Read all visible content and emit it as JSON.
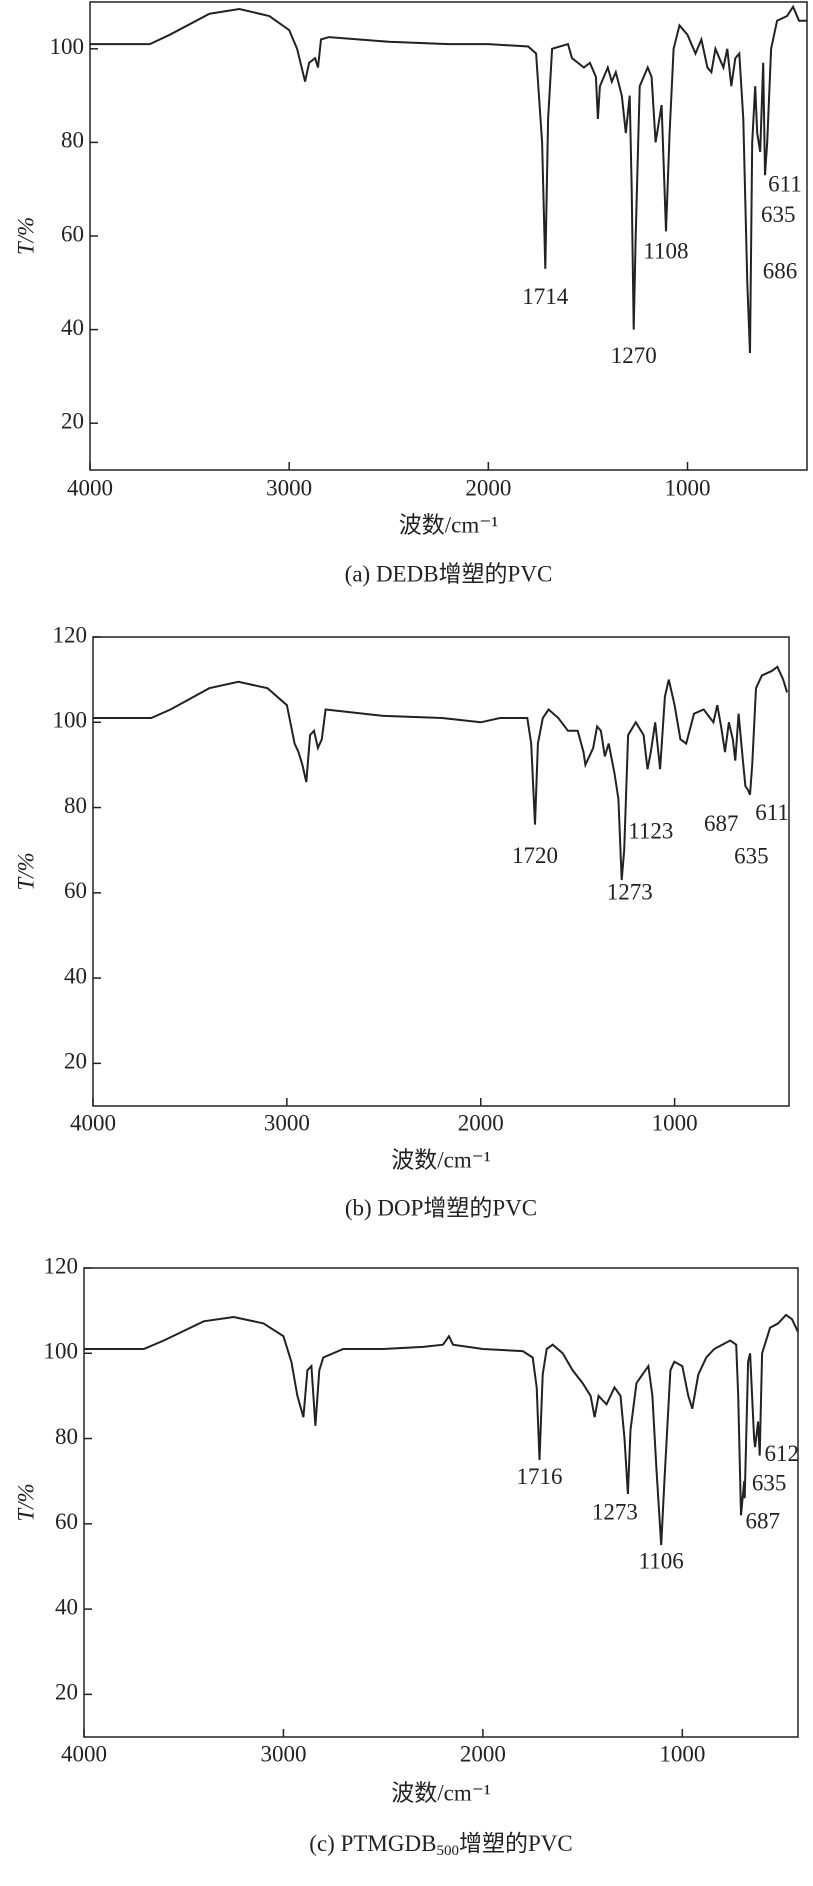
{
  "chart_data": [
    {
      "type": "line",
      "caption": "(a)  DEDB增塑的PVC",
      "xlabel": "波数/cm⁻¹",
      "ylabel": "T/%",
      "color": "#222222",
      "xlim": [
        4000,
        400
      ],
      "ylim": [
        10,
        110
      ],
      "xticks": [
        4000,
        3000,
        2000,
        1000
      ],
      "yticks": [
        20,
        40,
        60,
        80,
        100
      ],
      "x": [
        4000,
        3700,
        3600,
        3400,
        3250,
        3100,
        3000,
        2960,
        2920,
        2900,
        2870,
        2855,
        2840,
        2800,
        2500,
        2200,
        2000,
        1800,
        1760,
        1730,
        1714,
        1700,
        1680,
        1600,
        1580,
        1520,
        1490,
        1460,
        1450,
        1440,
        1400,
        1380,
        1360,
        1330,
        1310,
        1290,
        1280,
        1270,
        1260,
        1240,
        1200,
        1180,
        1160,
        1130,
        1108,
        1090,
        1070,
        1040,
        1000,
        960,
        930,
        900,
        880,
        860,
        820,
        800,
        780,
        760,
        740,
        720,
        700,
        686,
        675,
        660,
        650,
        635,
        620,
        611,
        600,
        580,
        550,
        500,
        470,
        440,
        400
      ],
      "values": [
        101,
        101,
        103,
        107.5,
        108.5,
        107,
        104,
        100,
        93,
        97,
        98,
        96,
        102,
        102.5,
        101.5,
        101,
        101,
        100.5,
        99,
        80,
        53,
        85,
        100,
        101,
        98,
        96,
        97,
        94,
        85,
        92,
        96,
        93,
        95,
        90,
        82,
        90,
        70,
        40,
        60,
        92,
        96,
        94,
        80,
        88,
        61,
        82,
        100,
        105,
        103,
        99,
        102,
        96,
        95,
        100,
        96,
        100,
        92,
        98,
        99,
        85,
        50,
        35,
        80,
        92,
        82,
        78,
        97,
        73,
        80,
        100,
        106,
        107,
        109,
        106,
        106
      ],
      "annotations": [
        1714,
        1270,
        1108,
        686,
        635,
        611
      ]
    },
    {
      "type": "line",
      "caption": "(b) DOP增塑的PVC",
      "xlabel": "波数/cm⁻¹",
      "ylabel": "T/%",
      "color": "#222222",
      "xlim": [
        4000,
        410
      ],
      "ylim": [
        10,
        120
      ],
      "xticks": [
        4000,
        3000,
        2000,
        1000
      ],
      "yticks": [
        20,
        40,
        60,
        80,
        100,
        120
      ],
      "x": [
        4000,
        3700,
        3600,
        3400,
        3250,
        3100,
        3000,
        2960,
        2940,
        2920,
        2900,
        2880,
        2860,
        2840,
        2820,
        2800,
        2500,
        2200,
        2000,
        1900,
        1760,
        1740,
        1720,
        1705,
        1680,
        1650,
        1600,
        1550,
        1500,
        1470,
        1460,
        1440,
        1420,
        1400,
        1380,
        1360,
        1340,
        1310,
        1290,
        1273,
        1260,
        1240,
        1200,
        1160,
        1140,
        1123,
        1100,
        1075,
        1050,
        1030,
        1000,
        970,
        940,
        900,
        850,
        800,
        780,
        760,
        740,
        720,
        700,
        687,
        670,
        650,
        635,
        620,
        611,
        600,
        580,
        550,
        500,
        470,
        440,
        420
      ],
      "values": [
        101,
        101,
        103,
        108,
        109.5,
        108,
        104,
        95,
        93,
        90,
        86,
        97,
        98,
        94,
        96,
        103,
        101.5,
        101,
        100,
        101,
        101,
        95,
        76,
        95,
        101,
        103,
        101,
        98,
        98,
        93,
        90,
        92,
        94,
        99,
        98,
        92,
        95,
        88,
        82,
        63,
        70,
        97,
        100,
        97,
        89,
        93,
        100,
        89,
        106,
        110,
        104,
        96,
        95,
        102,
        103,
        100,
        104,
        99,
        93,
        100,
        96,
        91,
        102,
        92,
        85,
        84,
        83,
        90,
        108,
        111,
        112,
        113,
        110,
        107
      ],
      "annotations": [
        1720,
        1273,
        1123,
        687,
        635,
        611
      ]
    },
    {
      "type": "line",
      "caption": [
        "(c) PTMGDB",
        "500",
        "增塑的PVC"
      ],
      "xlabel": "波数/cm⁻¹",
      "ylabel": "T/%",
      "color": "#222222",
      "xlim": [
        4000,
        420
      ],
      "ylim": [
        10,
        120
      ],
      "xticks": [
        4000,
        3000,
        2000,
        1000
      ],
      "yticks": [
        20,
        40,
        60,
        80,
        100,
        120
      ],
      "x": [
        4000,
        3700,
        3600,
        3400,
        3250,
        3100,
        3000,
        2960,
        2930,
        2900,
        2880,
        2860,
        2840,
        2820,
        2800,
        2700,
        2500,
        2300,
        2200,
        2170,
        2150,
        2000,
        1800,
        1750,
        1730,
        1716,
        1700,
        1680,
        1650,
        1600,
        1550,
        1500,
        1460,
        1440,
        1420,
        1380,
        1340,
        1310,
        1290,
        1273,
        1260,
        1230,
        1200,
        1170,
        1150,
        1130,
        1106,
        1090,
        1060,
        1040,
        1000,
        970,
        950,
        920,
        880,
        840,
        800,
        760,
        730,
        720,
        706,
        690,
        687,
        670,
        660,
        640,
        635,
        620,
        612,
        600,
        560,
        520,
        480,
        450,
        430,
        420
      ],
      "values": [
        101,
        101,
        103,
        107.5,
        108.5,
        107,
        104,
        98,
        90,
        85,
        96,
        97,
        83,
        96,
        99,
        101,
        101,
        101.5,
        102,
        104,
        102,
        101,
        100.5,
        99,
        92,
        75,
        95,
        101,
        102,
        100,
        96,
        93,
        90,
        85,
        90,
        88,
        92,
        90,
        80,
        67,
        82,
        93,
        95,
        97,
        90,
        73,
        55,
        70,
        96,
        98,
        97,
        90,
        87,
        95,
        99,
        101,
        102,
        103,
        102,
        90,
        62,
        70,
        66,
        98,
        100,
        80,
        78,
        84,
        76,
        100,
        106,
        107,
        109,
        108,
        106,
        105
      ],
      "annotations": [
        1716,
        1273,
        1106,
        687,
        635,
        612
      ]
    }
  ]
}
